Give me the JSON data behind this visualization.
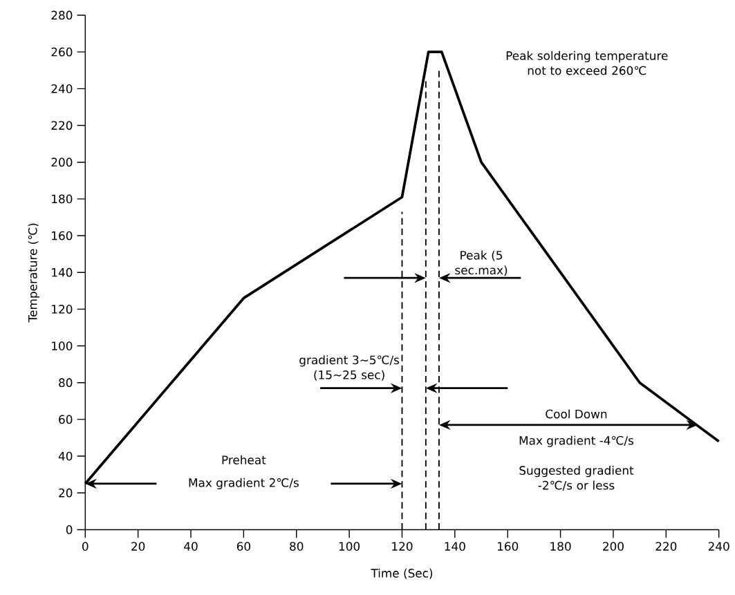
{
  "chart_data": {
    "type": "line",
    "xlabel": "Time (Sec)",
    "ylabel": "Temperature (℃)",
    "x": [
      0,
      60,
      120,
      130,
      135,
      150,
      210,
      240
    ],
    "values": [
      25,
      126,
      181,
      260,
      260,
      200,
      80,
      48
    ],
    "color": "#000000",
    "marker": "none",
    "line_style": "solid",
    "xlim": [
      0,
      240
    ],
    "ylim": [
      0,
      280
    ],
    "xticks": [
      0,
      20,
      40,
      60,
      80,
      100,
      120,
      140,
      160,
      180,
      200,
      220,
      240
    ],
    "yticks": [
      0,
      20,
      40,
      60,
      80,
      100,
      120,
      140,
      160,
      180,
      200,
      220,
      240,
      260,
      280
    ],
    "ref_lines": [
      {
        "axis": "x",
        "value": 120,
        "color": "#000000",
        "line_style": "dashed"
      },
      {
        "axis": "x",
        "value": 129,
        "color": "#000000",
        "line_style": "dashed"
      },
      {
        "axis": "x",
        "value": 134,
        "color": "#000000",
        "line_style": "dashed"
      }
    ],
    "annotations": [
      "Peak soldering temperature not to exceed 260℃",
      "Peak (5 sec.max)",
      "gradient 3~5℃/s (15~25 sec)",
      "Cool Down",
      "Max gradient -4℃/s",
      "Suggested gradient -2℃/s or less",
      "Preheat",
      "Max gradient 2℃/s"
    ]
  }
}
